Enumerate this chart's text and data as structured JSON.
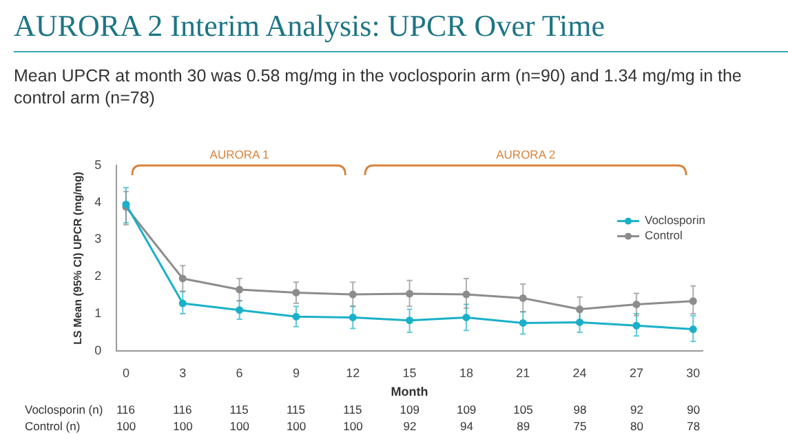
{
  "chart_data": {
    "type": "line",
    "title": "AURORA 2 Interim Analysis: UPCR Over Time",
    "subtitle": "Mean UPCR at month 30 was 0.58 mg/mg in the voclosporin arm (n=90) and 1.34 mg/mg in the control arm (n=78)",
    "xlabel": "Month",
    "ylabel": "LS Mean (95% CI) UPCR (mg/mg)",
    "x": [
      0,
      3,
      6,
      9,
      12,
      15,
      18,
      21,
      24,
      27,
      30
    ],
    "series": [
      {
        "name": "Voclosporin",
        "color": "#1ab0c8",
        "values": [
          3.95,
          1.28,
          1.1,
          0.92,
          0.9,
          0.82,
          0.9,
          0.75,
          0.77,
          0.68,
          0.58
        ],
        "errors": [
          [
            3.45,
            4.4
          ],
          [
            1.0,
            1.6
          ],
          [
            0.85,
            1.35
          ],
          [
            0.65,
            1.2
          ],
          [
            0.6,
            1.2
          ],
          [
            0.5,
            1.12
          ],
          [
            0.55,
            1.25
          ],
          [
            0.45,
            1.05
          ],
          [
            0.5,
            1.05
          ],
          [
            0.4,
            1.0
          ],
          [
            0.25,
            0.95
          ]
        ]
      },
      {
        "name": "Control",
        "color": "#8c8c8c",
        "values": [
          3.88,
          1.95,
          1.65,
          1.57,
          1.52,
          1.54,
          1.52,
          1.42,
          1.12,
          1.25,
          1.34
        ],
        "errors": [
          [
            3.4,
            4.3
          ],
          [
            1.6,
            2.3
          ],
          [
            1.35,
            1.95
          ],
          [
            1.28,
            1.85
          ],
          [
            1.2,
            1.85
          ],
          [
            1.2,
            1.9
          ],
          [
            1.15,
            1.95
          ],
          [
            1.05,
            1.8
          ],
          [
            0.8,
            1.45
          ],
          [
            0.95,
            1.55
          ],
          [
            1.0,
            1.75
          ]
        ]
      }
    ],
    "xlim": [
      -0.5,
      30.5
    ],
    "xticks": [
      0,
      3,
      6,
      9,
      12,
      15,
      18,
      21,
      24,
      27,
      30
    ],
    "ylim": [
      0,
      5
    ],
    "yticks": [
      0,
      1,
      2,
      3,
      4,
      5
    ],
    "grid": false,
    "legend": "right",
    "marker": "circle",
    "line_style": "solid",
    "annotations": [
      "AURORA 1",
      "AURORA 2",
      "Voclosporin (n)",
      "116",
      "116",
      "115",
      "115",
      "115",
      "109",
      "109",
      "105",
      "98",
      "92",
      "90",
      "Control (n)",
      "100",
      "100",
      "100",
      "100",
      "100",
      "92",
      "94",
      "89",
      "75",
      "80",
      "78"
    ]
  }
}
